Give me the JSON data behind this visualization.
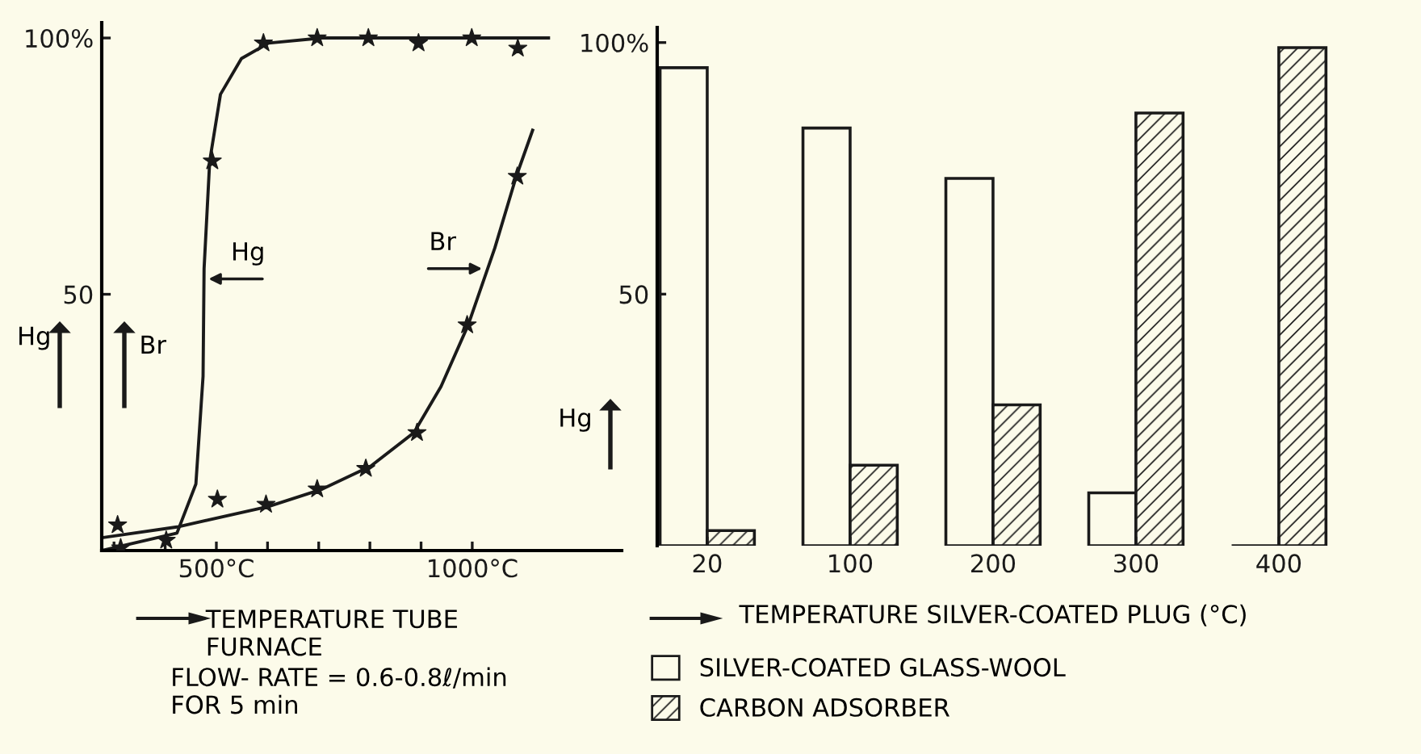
{
  "chart_data": [
    {
      "type": "line",
      "xlabel": "TEMPERATURE TUBE\nFURNACE",
      "ylabel": "Hg",
      "xlim": [
        276,
        1292
      ],
      "ylim": [
        0,
        103
      ],
      "xticks": [
        {
          "value": 300,
          "label": null
        },
        {
          "value": 400,
          "label": null
        },
        {
          "value": 500,
          "label": "500°C"
        },
        {
          "value": 600,
          "label": null
        },
        {
          "value": 700,
          "label": null
        },
        {
          "value": 800,
          "label": null
        },
        {
          "value": 900,
          "label": null
        },
        {
          "value": 1000,
          "label": "1000°C"
        }
      ],
      "yticks": [
        50,
        {
          "value": 100,
          "label": "100%"
        }
      ],
      "grid": false,
      "legend": false,
      "series": [
        {
          "type": "line",
          "color": "#1a1a1a",
          "line_style": "solid",
          "marker": "none",
          "x": [
            276,
            423,
            460,
            474,
            476,
            487,
            508,
            549,
            602,
            707,
            1149
          ],
          "values": [
            0,
            3.4,
            13,
            34,
            55,
            76,
            89,
            96,
            99,
            100,
            100
          ]
        },
        {
          "type": "line",
          "color": "#1a1a1a",
          "line_style": "solid",
          "marker": "none",
          "x": [
            276,
            423,
            602,
            707,
            802,
            886,
            939,
            992,
            1044,
            1086,
            1118
          ],
          "values": [
            2.5,
            4.6,
            8.6,
            12,
            16.5,
            23,
            32,
            44,
            59,
            73,
            82
          ]
        },
        {
          "type": "scatter",
          "color": "#1a1a1a",
          "marker": "star",
          "x": [
            313,
            402,
            492,
            592,
            697,
            797,
            895,
            999,
            1089
          ],
          "values": [
            0.5,
            2,
            76,
            99,
            100,
            100,
            99,
            100,
            98
          ]
        },
        {
          "type": "scatter",
          "color": "#1a1a1a",
          "marker": "star",
          "x": [
            307,
            502,
            597,
            697,
            792,
            892,
            990,
            1088
          ],
          "values": [
            5,
            10,
            9,
            12,
            16,
            23,
            44,
            73
          ]
        }
      ],
      "annotations": [
        {
          "text": "Hg",
          "x": 476,
          "y": 53
        },
        {
          "text": "Br",
          "x": 1028,
          "y": 55
        },
        "Br",
        "FLOW- RATE = 0.6-0.8ℓ/min\nFOR 5 min"
      ]
    },
    {
      "type": "bar",
      "xlabel": "TEMPERATURE SILVER-COATED PLUG (°C)",
      "ylabel": "Hg",
      "ylim": [
        0,
        103
      ],
      "yticks": [
        50,
        {
          "value": 100,
          "label": "100%"
        }
      ],
      "categories": [
        "20",
        "100",
        "200",
        "300",
        "400"
      ],
      "grid": false,
      "legend": "bottom",
      "series": [
        {
          "name": "SILVER-COATED GLASS-WOOL",
          "color": "#1a1a1a",
          "values": [
            95,
            83,
            73,
            10.5,
            0
          ]
        },
        {
          "name": "CARBON ADSORBER",
          "color": "#1a1a1a",
          "values": [
            3,
            16,
            28,
            86,
            99
          ]
        }
      ]
    }
  ]
}
